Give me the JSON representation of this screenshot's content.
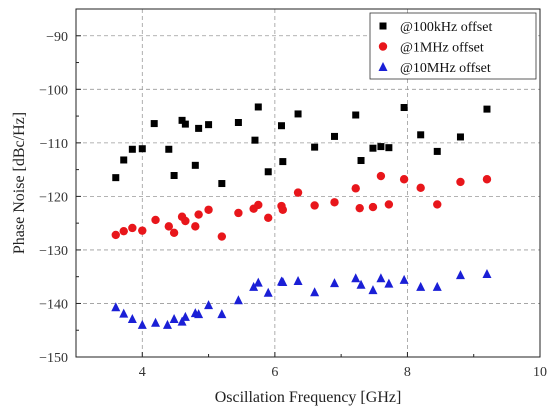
{
  "chart_data": {
    "type": "scatter",
    "title": "",
    "xlabel": "Oscillation Frequency [GHz]",
    "ylabel": "Phase Noise [dBc/Hz]",
    "xlim": [
      3,
      10
    ],
    "ylim": [
      -150,
      -85
    ],
    "xticks": [
      4,
      6,
      8,
      10
    ],
    "yticks": [
      -150,
      -140,
      -130,
      -120,
      -110,
      -100,
      -90
    ],
    "xtick_labels": [
      "4",
      "6",
      "8",
      "10"
    ],
    "ytick_labels": [
      "−150",
      "−140",
      "−130",
      "−120",
      "−110",
      "−100",
      "−90"
    ],
    "grid": true,
    "legend_position": "top-right",
    "series": [
      {
        "name": "@100kHz offset",
        "marker": "square",
        "color": "#000000",
        "points": [
          [
            3.6,
            -116.5
          ],
          [
            3.72,
            -113.2
          ],
          [
            3.85,
            -111.2
          ],
          [
            4.0,
            -111.1
          ],
          [
            4.18,
            -106.4
          ],
          [
            4.4,
            -111.2
          ],
          [
            4.48,
            -116.1
          ],
          [
            4.6,
            -105.8
          ],
          [
            4.65,
            -106.5
          ],
          [
            4.8,
            -114.2
          ],
          [
            4.85,
            -107.3
          ],
          [
            5.0,
            -106.6
          ],
          [
            5.2,
            -117.6
          ],
          [
            5.45,
            -106.2
          ],
          [
            5.7,
            -109.5
          ],
          [
            5.75,
            -103.3
          ],
          [
            5.9,
            -115.4
          ],
          [
            6.1,
            -106.8
          ],
          [
            6.12,
            -113.5
          ],
          [
            6.35,
            -104.6
          ],
          [
            6.6,
            -110.8
          ],
          [
            6.9,
            -108.8
          ],
          [
            7.22,
            -104.8
          ],
          [
            7.3,
            -113.3
          ],
          [
            7.48,
            -111.0
          ],
          [
            7.6,
            -110.7
          ],
          [
            7.72,
            -110.9
          ],
          [
            7.95,
            -103.4
          ],
          [
            8.2,
            -108.5
          ],
          [
            8.45,
            -111.6
          ],
          [
            8.8,
            -108.9
          ],
          [
            9.2,
            -103.7
          ]
        ]
      },
      {
        "name": "@1MHz offset",
        "marker": "circle",
        "color": "#e8161b",
        "points": [
          [
            3.6,
            -127.2
          ],
          [
            3.72,
            -126.5
          ],
          [
            3.85,
            -125.9
          ],
          [
            4.0,
            -126.4
          ],
          [
            4.2,
            -124.4
          ],
          [
            4.4,
            -125.6
          ],
          [
            4.48,
            -126.8
          ],
          [
            4.6,
            -123.8
          ],
          [
            4.65,
            -124.6
          ],
          [
            4.8,
            -125.6
          ],
          [
            4.85,
            -123.4
          ],
          [
            5.0,
            -122.5
          ],
          [
            5.2,
            -127.5
          ],
          [
            5.45,
            -123.1
          ],
          [
            5.68,
            -122.3
          ],
          [
            5.75,
            -121.6
          ],
          [
            5.9,
            -124.0
          ],
          [
            6.1,
            -121.8
          ],
          [
            6.12,
            -122.5
          ],
          [
            6.35,
            -119.3
          ],
          [
            6.6,
            -121.7
          ],
          [
            6.9,
            -121.1
          ],
          [
            7.22,
            -118.5
          ],
          [
            7.28,
            -122.2
          ],
          [
            7.48,
            -122.0
          ],
          [
            7.6,
            -116.2
          ],
          [
            7.72,
            -121.5
          ],
          [
            7.95,
            -116.8
          ],
          [
            8.2,
            -118.4
          ],
          [
            8.45,
            -121.5
          ],
          [
            8.8,
            -117.3
          ],
          [
            9.2,
            -116.8
          ]
        ]
      },
      {
        "name": "@10MHz offset",
        "marker": "triangle",
        "color": "#1a1fd6",
        "points": [
          [
            3.6,
            -140.7
          ],
          [
            3.72,
            -141.9
          ],
          [
            3.85,
            -142.9
          ],
          [
            4.0,
            -144.0
          ],
          [
            4.2,
            -143.6
          ],
          [
            4.38,
            -144.0
          ],
          [
            4.48,
            -142.9
          ],
          [
            4.6,
            -143.4
          ],
          [
            4.65,
            -142.5
          ],
          [
            4.8,
            -141.8
          ],
          [
            4.85,
            -142.0
          ],
          [
            5.0,
            -140.3
          ],
          [
            5.2,
            -142.0
          ],
          [
            5.45,
            -139.4
          ],
          [
            5.68,
            -136.9
          ],
          [
            5.75,
            -136.1
          ],
          [
            5.9,
            -138.0
          ],
          [
            6.1,
            -135.9
          ],
          [
            6.12,
            -136.0
          ],
          [
            6.35,
            -135.8
          ],
          [
            6.6,
            -137.9
          ],
          [
            6.9,
            -136.2
          ],
          [
            7.22,
            -135.3
          ],
          [
            7.3,
            -136.5
          ],
          [
            7.48,
            -137.5
          ],
          [
            7.6,
            -135.3
          ],
          [
            7.72,
            -136.3
          ],
          [
            7.95,
            -135.6
          ],
          [
            8.2,
            -136.9
          ],
          [
            8.45,
            -136.9
          ],
          [
            8.8,
            -134.7
          ],
          [
            9.2,
            -134.5
          ]
        ]
      }
    ]
  }
}
